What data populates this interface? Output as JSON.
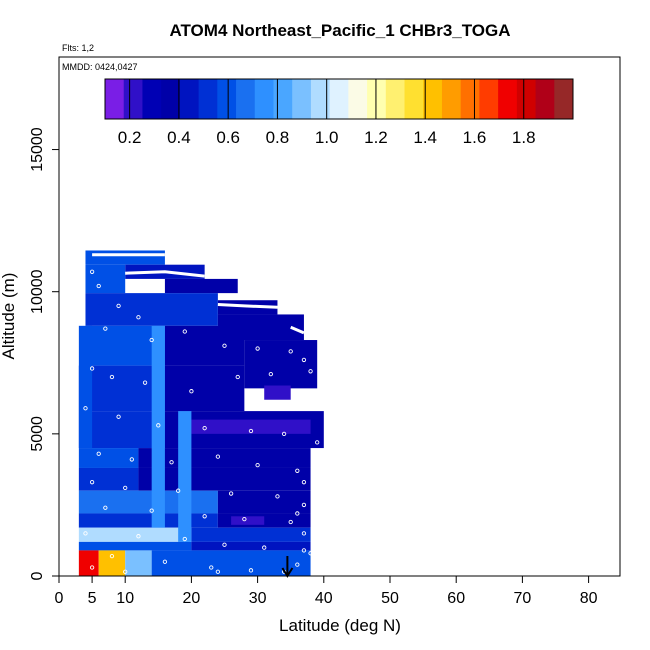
{
  "chart_data": {
    "type": "heatmap",
    "title": "ATOM4 Northeast_Pacific_1 CHBr3_TOGA",
    "flights_note": "Flts: 1,2",
    "dates_note": "MMDD: 0424,0427",
    "xlabel": "Latitude (deg N)",
    "ylabel": "Altitude (m)",
    "xlim": [
      0,
      85
    ],
    "ylim": [
      0,
      17500
    ],
    "x_ticks": [
      0,
      5,
      10,
      20,
      30,
      40,
      50,
      60,
      70,
      80
    ],
    "y_ticks": [
      0,
      5000,
      10000,
      15000
    ],
    "colorbar": {
      "min": 0.1,
      "max": 2.0,
      "tick_values": [
        0.2,
        0.4,
        0.6,
        0.8,
        1.0,
        1.2,
        1.4,
        1.6,
        1.8
      ],
      "tick_labels": [
        "0.2",
        "0.4",
        "0.6",
        "0.8",
        "1.0",
        "1.2",
        "1.4",
        "1.6",
        "1.8"
      ],
      "colors": [
        "#7a1ee6",
        "#3010c8",
        "#0000b4",
        "#0000a8",
        "#0014c0",
        "#0030d4",
        "#0050e6",
        "#1a70f0",
        "#2e90ff",
        "#4aa6ff",
        "#7ac0ff",
        "#b0dcff",
        "#dff2ff",
        "#fbfbe6",
        "#ffffb0",
        "#fff070",
        "#ffe030",
        "#ffc000",
        "#ff9c00",
        "#ff7000",
        "#ff3c00",
        "#f00000",
        "#d00000",
        "#b00018",
        "#962828"
      ]
    },
    "marker_latitude": 34.5,
    "cells": [
      {
        "lat": [
          4,
          16
        ],
        "alt": [
          10950,
          11450
        ],
        "v": 0.62
      },
      {
        "lat": [
          10,
          22
        ],
        "alt": [
          10450,
          10950
        ],
        "v": 0.45
      },
      {
        "lat": [
          16,
          27
        ],
        "alt": [
          9950,
          10450
        ],
        "v": 0.4
      },
      {
        "lat": [
          4,
          10
        ],
        "alt": [
          9950,
          10950
        ],
        "v": 0.58
      },
      {
        "lat": [
          24,
          33
        ],
        "alt": [
          9200,
          9700
        ],
        "v": 0.38
      },
      {
        "lat": [
          4,
          24
        ],
        "alt": [
          8800,
          9950
        ],
        "v": 0.52
      },
      {
        "lat": [
          24,
          37
        ],
        "alt": [
          8300,
          9200
        ],
        "v": 0.36
      },
      {
        "lat": [
          4,
          16
        ],
        "alt": [
          7400,
          8800
        ],
        "v": 0.58
      },
      {
        "lat": [
          16,
          28
        ],
        "alt": [
          7400,
          8800
        ],
        "v": 0.4
      },
      {
        "lat": [
          28,
          39
        ],
        "alt": [
          6600,
          8300
        ],
        "v": 0.35
      },
      {
        "lat": [
          3,
          16
        ],
        "alt": [
          5800,
          7400
        ],
        "v": 0.55
      },
      {
        "lat": [
          16,
          28
        ],
        "alt": [
          5800,
          7400
        ],
        "v": 0.38
      },
      {
        "lat": [
          3,
          16
        ],
        "alt": [
          4500,
          5800
        ],
        "v": 0.5
      },
      {
        "lat": [
          16,
          40
        ],
        "alt": [
          4500,
          5800
        ],
        "v": 0.36
      },
      {
        "lat": [
          3,
          12
        ],
        "alt": [
          3800,
          4500
        ],
        "v": 0.58
      },
      {
        "lat": [
          12,
          38
        ],
        "alt": [
          3800,
          4500
        ],
        "v": 0.38
      },
      {
        "lat": [
          3,
          12
        ],
        "alt": [
          3000,
          3800
        ],
        "v": 0.5
      },
      {
        "lat": [
          12,
          38
        ],
        "alt": [
          3000,
          3800
        ],
        "v": 0.38
      },
      {
        "lat": [
          3,
          24
        ],
        "alt": [
          2200,
          3000
        ],
        "v": 0.7
      },
      {
        "lat": [
          24,
          38
        ],
        "alt": [
          2200,
          3000
        ],
        "v": 0.4
      },
      {
        "lat": [
          3,
          24
        ],
        "alt": [
          1700,
          2200
        ],
        "v": 0.55
      },
      {
        "lat": [
          24,
          38
        ],
        "alt": [
          1700,
          2200
        ],
        "v": 0.35
      },
      {
        "lat": [
          3,
          20
        ],
        "alt": [
          1200,
          1700
        ],
        "v": 0.95
      },
      {
        "lat": [
          20,
          38
        ],
        "alt": [
          1200,
          1700
        ],
        "v": 0.5
      },
      {
        "lat": [
          3,
          20
        ],
        "alt": [
          900,
          1200
        ],
        "v": 0.62
      },
      {
        "lat": [
          20,
          38
        ],
        "alt": [
          900,
          1200
        ],
        "v": 0.46
      },
      {
        "lat": [
          3,
          6
        ],
        "alt": [
          0,
          900
        ],
        "v": 1.75
      },
      {
        "lat": [
          6,
          10
        ],
        "alt": [
          0,
          900
        ],
        "v": 1.4
      },
      {
        "lat": [
          10,
          14
        ],
        "alt": [
          0,
          900
        ],
        "v": 0.9
      },
      {
        "lat": [
          14,
          38
        ],
        "alt": [
          0,
          900
        ],
        "v": 0.62
      },
      {
        "lat": [
          20,
          38
        ],
        "alt": [
          5000,
          5500
        ],
        "v": 0.2
      },
      {
        "lat": [
          31,
          35
        ],
        "alt": [
          6200,
          6700
        ],
        "v": 0.22
      },
      {
        "lat": [
          26,
          31
        ],
        "alt": [
          1800,
          2100
        ],
        "v": 0.22
      },
      {
        "lat": [
          14,
          16
        ],
        "alt": [
          1700,
          8800
        ],
        "v": 0.75
      },
      {
        "lat": [
          18,
          20
        ],
        "alt": [
          1200,
          5800
        ],
        "v": 0.72
      },
      {
        "lat": [
          3,
          5
        ],
        "alt": [
          4500,
          8800
        ],
        "v": 0.6
      }
    ],
    "tracks": [
      {
        "points": [
          [
            5,
            11300
          ],
          [
            16,
            11300
          ]
        ]
      },
      {
        "points": [
          [
            10,
            10650
          ],
          [
            16,
            10700
          ],
          [
            22,
            10550
          ]
        ]
      },
      {
        "points": [
          [
            24,
            9550
          ],
          [
            28,
            9500
          ],
          [
            33,
            9450
          ]
        ]
      },
      {
        "points": [
          [
            35,
            8750
          ],
          [
            37,
            8550
          ]
        ]
      }
    ],
    "samples": [
      [
        5,
        10700
      ],
      [
        6,
        10200
      ],
      [
        9,
        9500
      ],
      [
        12,
        9100
      ],
      [
        7,
        8700
      ],
      [
        14,
        8300
      ],
      [
        19,
        8600
      ],
      [
        25,
        8100
      ],
      [
        30,
        8000
      ],
      [
        35,
        7900
      ],
      [
        37,
        7600
      ],
      [
        5,
        7300
      ],
      [
        8,
        7000
      ],
      [
        13,
        6800
      ],
      [
        20,
        6500
      ],
      [
        27,
        7000
      ],
      [
        32,
        7100
      ],
      [
        36,
        6400
      ],
      [
        38,
        5900
      ],
      [
        4,
        5900
      ],
      [
        9,
        5600
      ],
      [
        15,
        5300
      ],
      [
        22,
        5200
      ],
      [
        29,
        5100
      ],
      [
        34,
        5000
      ],
      [
        39,
        4700
      ],
      [
        6,
        4300
      ],
      [
        11,
        4100
      ],
      [
        17,
        4000
      ],
      [
        24,
        4200
      ],
      [
        30,
        3900
      ],
      [
        36,
        3700
      ],
      [
        5,
        3300
      ],
      [
        10,
        3100
      ],
      [
        18,
        3000
      ],
      [
        26,
        2900
      ],
      [
        33,
        2800
      ],
      [
        37,
        2500
      ],
      [
        7,
        2400
      ],
      [
        14,
        2300
      ],
      [
        22,
        2100
      ],
      [
        28,
        2000
      ],
      [
        35,
        1900
      ],
      [
        4,
        1500
      ],
      [
        12,
        1400
      ],
      [
        19,
        1300
      ],
      [
        25,
        1100
      ],
      [
        31,
        1000
      ],
      [
        37,
        900
      ],
      [
        8,
        700
      ],
      [
        16,
        500
      ],
      [
        23,
        300
      ],
      [
        29,
        200
      ],
      [
        34,
        150
      ],
      [
        36,
        400
      ],
      [
        38,
        800
      ],
      [
        5,
        300
      ],
      [
        10,
        150
      ],
      [
        38,
        7200
      ],
      [
        39,
        6300
      ],
      [
        37,
        3300
      ],
      [
        36,
        2200
      ],
      [
        37,
        1500
      ],
      [
        24,
        150
      ]
    ]
  }
}
